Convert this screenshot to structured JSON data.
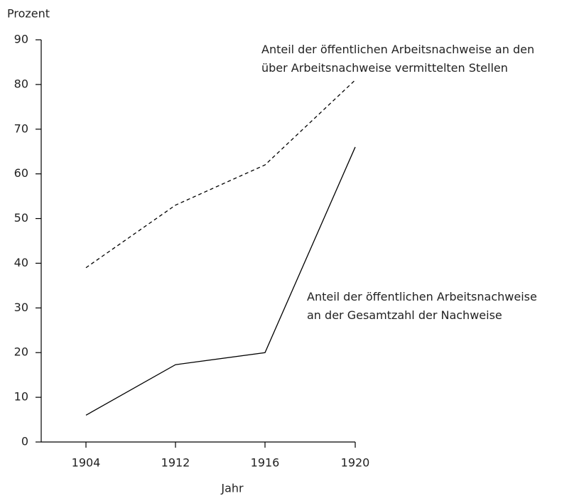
{
  "chart_data": {
    "type": "line",
    "y_label": "Prozent",
    "x_label": "Jahr",
    "categories": [
      "1904",
      "1912",
      "1916",
      "1920"
    ],
    "series": [
      {
        "name": "Anteil der öffentlichen Arbeitsnachweise an den\nüber Arbeitsnachweise vermittelten Stellen",
        "color": "#000000",
        "dash": true,
        "values": [
          39,
          53,
          62,
          81
        ]
      },
      {
        "name": "Anteil der öffentlichen Arbeitsnachweise\nan der Gesamtzahl der Nachweise",
        "color": "#000000",
        "dash": false,
        "values": [
          6,
          17.3,
          20,
          66
        ]
      }
    ],
    "ylim": [
      0,
      90
    ],
    "yticks": [
      0,
      10,
      20,
      30,
      40,
      50,
      60,
      70,
      80,
      90
    ]
  }
}
